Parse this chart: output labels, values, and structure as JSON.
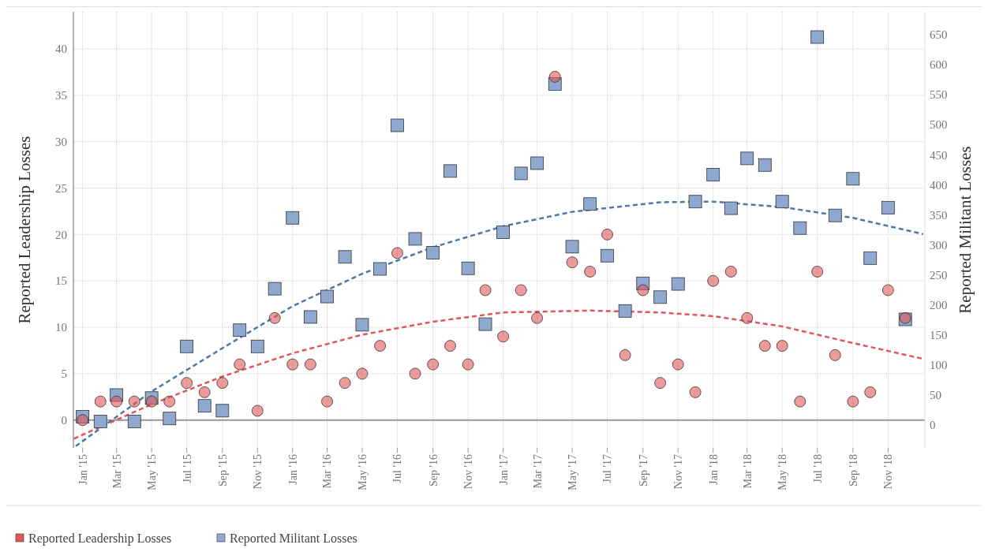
{
  "chart_data": {
    "type": "scatter",
    "ylabel": "Reported Leadership Losses",
    "y2label": "Reported Militant Losses",
    "x": [
      "2015-01",
      "2015-02",
      "2015-03",
      "2015-04",
      "2015-05",
      "2015-06",
      "2015-07",
      "2015-08",
      "2015-09",
      "2015-10",
      "2015-11",
      "2015-12",
      "2016-01",
      "2016-02",
      "2016-03",
      "2016-04",
      "2016-05",
      "2016-06",
      "2016-07",
      "2016-08",
      "2016-09",
      "2016-10",
      "2016-11",
      "2016-12",
      "2017-01",
      "2017-02",
      "2017-03",
      "2017-04",
      "2017-05",
      "2017-06",
      "2017-07",
      "2017-08",
      "2017-09",
      "2017-10",
      "2017-11",
      "2017-12",
      "2018-01",
      "2018-02",
      "2018-03",
      "2018-04",
      "2018-05",
      "2018-06",
      "2018-07",
      "2018-08",
      "2018-09",
      "2018-10",
      "2018-11",
      "2018-12"
    ],
    "series": [
      {
        "name": "Reported Leadership Losses",
        "color": "#e15759",
        "marker": "circle",
        "values": [
          0,
          2,
          2,
          2,
          2,
          2,
          4,
          3,
          4,
          6,
          1,
          11,
          6,
          6,
          2,
          4,
          5,
          8,
          18,
          5,
          6,
          8,
          6,
          14,
          9,
          14,
          11,
          37,
          17,
          16,
          20,
          7,
          14,
          4,
          6,
          3,
          15,
          16,
          11,
          8,
          8,
          2,
          16,
          7,
          2,
          3,
          14,
          11
        ]
      },
      {
        "name": "Reported Militant Losses",
        "color": "#8ea8d0",
        "marker": "square",
        "axis": "y2",
        "values": [
          14,
          6,
          50,
          6,
          45,
          11,
          131,
          32,
          24,
          158,
          131,
          227,
          345,
          180,
          214,
          280,
          167,
          260,
          499,
          310,
          287,
          423,
          261,
          168,
          321,
          419,
          436,
          568,
          297,
          368,
          282,
          190,
          236,
          213,
          235,
          372,
          417,
          361,
          444,
          433,
          372,
          328,
          646,
          349,
          410,
          278,
          362,
          176
        ]
      },
      {
        "type": "line",
        "color": "#e15759",
        "line_style": "dashed",
        "marker": "none",
        "x": [
          "2014-12-17",
          "2015-05-01",
          "2015-09-01",
          "2016-01-01",
          "2016-05-01",
          "2016-09-01",
          "2017-01-01",
          "2017-06-01",
          "2017-10-01",
          "2018-01-01",
          "2018-05-01",
          "2018-09-01",
          "2019-01-01"
        ],
        "values": [
          -2.0,
          1.7,
          4.7,
          7.2,
          9.2,
          10.6,
          11.6,
          11.8,
          11.6,
          11.2,
          10.1,
          8.3,
          6.6
        ]
      },
      {
        "type": "line",
        "color": "#4e79a7",
        "line_style": "dashed",
        "marker": "none",
        "axis": "y2",
        "x": [
          "2014-12-20",
          "2015-05-01",
          "2015-09-01",
          "2016-01-01",
          "2016-05-01",
          "2016-09-01",
          "2017-01-01",
          "2017-05-01",
          "2017-10-01",
          "2018-01-01",
          "2018-05-01",
          "2018-09-01",
          "2019-01-01"
        ],
        "values": [
          -35,
          56,
          128,
          198,
          252,
          296,
          331,
          355,
          371,
          372,
          363,
          345,
          318
        ]
      }
    ],
    "xlim": [
      "2014-12-16",
      "2019-01-04"
    ],
    "xticks": [
      {
        "value": "2015-01",
        "label": "Jan '15"
      },
      {
        "value": "2015-03",
        "label": "Mar '15"
      },
      {
        "value": "2015-05",
        "label": "May '15"
      },
      {
        "value": "2015-07",
        "label": "Jul '15"
      },
      {
        "value": "2015-09",
        "label": "Sep '15"
      },
      {
        "value": "2015-11",
        "label": "Nov '15"
      },
      {
        "value": "2016-01",
        "label": "Jan '16"
      },
      {
        "value": "2016-03",
        "label": "Mar '16"
      },
      {
        "value": "2016-05",
        "label": "May '16"
      },
      {
        "value": "2016-07",
        "label": "Jul '16"
      },
      {
        "value": "2016-09",
        "label": "Sep '16"
      },
      {
        "value": "2016-11",
        "label": "Nov '16"
      },
      {
        "value": "2017-01",
        "label": "Jan '17"
      },
      {
        "value": "2017-03",
        "label": "Mar '17"
      },
      {
        "value": "2017-05",
        "label": "May '17"
      },
      {
        "value": "2017-07",
        "label": "Jul '17"
      },
      {
        "value": "2017-09",
        "label": "Sep '17"
      },
      {
        "value": "2017-11",
        "label": "Nov '17"
      },
      {
        "value": "2018-01",
        "label": "Jan '18"
      },
      {
        "value": "2018-03",
        "label": "Mar '18"
      },
      {
        "value": "2018-05",
        "label": "May '18"
      },
      {
        "value": "2018-07",
        "label": "Jul '18"
      },
      {
        "value": "2018-09",
        "label": "Sep '18"
      },
      {
        "value": "2018-11",
        "label": "Nov '18"
      }
    ],
    "ylim": [
      -3,
      44
    ],
    "yticks": [
      0,
      5,
      10,
      15,
      20,
      25,
      30,
      35,
      40
    ],
    "y2lim": [
      -38,
      688
    ],
    "y2ticks": [
      0,
      50,
      100,
      150,
      200,
      250,
      300,
      350,
      400,
      450,
      500,
      550,
      600,
      650
    ],
    "ref_lines": [
      {
        "axis": "y",
        "value": 0,
        "color": "#999999"
      }
    ],
    "grid": true,
    "legend": "bottom"
  }
}
